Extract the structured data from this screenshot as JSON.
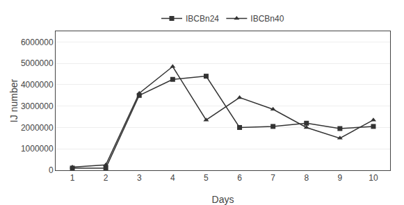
{
  "chart_data": {
    "type": "line",
    "x": [
      1,
      2,
      3,
      4,
      5,
      6,
      7,
      8,
      9,
      10
    ],
    "series": [
      {
        "name": "IBCBn24",
        "color": "#333333",
        "marker": "square",
        "values": [
          100000,
          100000,
          3500000,
          4250000,
          4400000,
          2000000,
          2050000,
          2200000,
          1950000,
          2050000
        ]
      },
      {
        "name": "IBCBn40",
        "color": "#333333",
        "marker": "triangle",
        "values": [
          150000,
          250000,
          3600000,
          4850000,
          2350000,
          3400000,
          2850000,
          2000000,
          1500000,
          2350000
        ]
      }
    ],
    "xlabel": "Days",
    "ylabel": "IJ number",
    "xlim": [
      0.5,
      10.5
    ],
    "xticks": [
      1,
      2,
      3,
      4,
      5,
      6,
      7,
      8,
      9,
      10
    ],
    "ylim": [
      0,
      6500000
    ],
    "yticks": [
      0,
      1000000,
      2000000,
      3000000,
      4000000,
      5000000,
      6000000
    ],
    "grid": "y",
    "legend": "top"
  }
}
